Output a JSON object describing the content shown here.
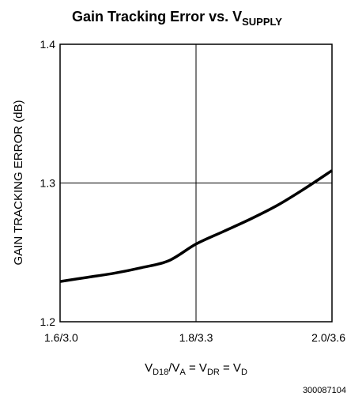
{
  "chart_data": {
    "type": "line",
    "title": {
      "main": "Gain Tracking Error vs. V",
      "sub": "SUPPLY"
    },
    "xlabel": {
      "parts": [
        {
          "text": "V",
          "sub": false
        },
        {
          "text": "D18",
          "sub": true
        },
        {
          "text": "/V",
          "sub": false
        },
        {
          "text": "A",
          "sub": true
        },
        {
          "text": " = V",
          "sub": false
        },
        {
          "text": "DR",
          "sub": true
        },
        {
          "text": " = V",
          "sub": false
        },
        {
          "text": "D",
          "sub": true
        }
      ]
    },
    "ylabel": "GAIN TRACKING ERROR (dB)",
    "x_categories": [
      "1.6/3.0",
      "1.8/3.3",
      "2.0/3.6"
    ],
    "xlim": [
      0,
      2
    ],
    "ylim": [
      1.2,
      1.4
    ],
    "yticks": [
      "1.2",
      "1.3",
      "1.4"
    ],
    "grid": true,
    "series": [
      {
        "points": [
          [
            0.0,
            1.229
          ],
          [
            0.2,
            1.232
          ],
          [
            0.4,
            1.235
          ],
          [
            0.6,
            1.239
          ],
          [
            0.8,
            1.244
          ],
          [
            1.0,
            1.256
          ],
          [
            1.2,
            1.265
          ],
          [
            1.4,
            1.274
          ],
          [
            1.6,
            1.284
          ],
          [
            1.8,
            1.296
          ],
          [
            2.0,
            1.309
          ]
        ]
      }
    ]
  },
  "figure_code": "300087104"
}
